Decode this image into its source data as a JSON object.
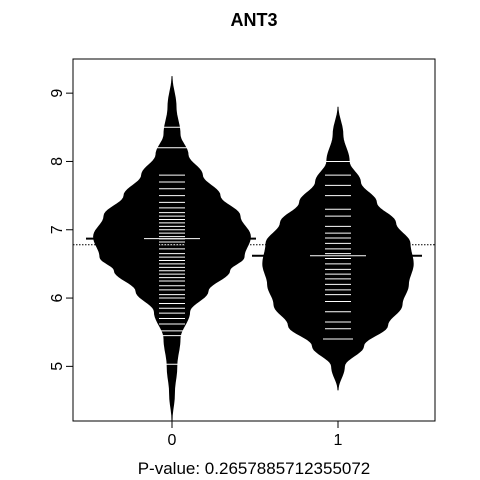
{
  "chart_data": {
    "type": "beanplot",
    "title": "ANT3",
    "xlabel": "P-value: 0.2657885712355072",
    "ylabel": "",
    "ylim": [
      4.2,
      9.5
    ],
    "y_ticks": [
      5,
      6,
      7,
      8,
      9
    ],
    "categories": [
      "0",
      "1"
    ],
    "overall_mean": 6.78,
    "series": [
      {
        "category": "0",
        "mean": 6.87,
        "range": [
          4.2,
          9.25
        ],
        "density": [
          [
            4.2,
            0
          ],
          [
            4.6,
            0.03
          ],
          [
            5.0,
            0.06
          ],
          [
            5.4,
            0.1
          ],
          [
            5.8,
            0.22
          ],
          [
            6.1,
            0.45
          ],
          [
            6.4,
            0.72
          ],
          [
            6.6,
            0.9
          ],
          [
            6.9,
            0.98
          ],
          [
            7.2,
            0.85
          ],
          [
            7.5,
            0.6
          ],
          [
            7.8,
            0.38
          ],
          [
            8.1,
            0.2
          ],
          [
            8.4,
            0.1
          ],
          [
            8.8,
            0.05
          ],
          [
            9.25,
            0
          ]
        ],
        "observations": [
          5.03,
          5.45,
          5.52,
          5.62,
          5.7,
          5.78,
          5.85,
          5.92,
          6.0,
          6.05,
          6.12,
          6.18,
          6.25,
          6.3,
          6.35,
          6.4,
          6.45,
          6.5,
          6.55,
          6.6,
          6.65,
          6.72,
          6.78,
          6.82,
          6.86,
          6.9,
          6.95,
          7.0,
          7.05,
          7.1,
          7.15,
          7.2,
          7.25,
          7.32,
          7.4,
          7.5,
          7.6,
          7.7,
          7.8,
          8.2,
          8.5
        ]
      },
      {
        "category": "1",
        "mean": 6.62,
        "range": [
          4.65,
          8.8
        ],
        "density": [
          [
            4.65,
            0
          ],
          [
            5.0,
            0.08
          ],
          [
            5.3,
            0.32
          ],
          [
            5.6,
            0.62
          ],
          [
            5.9,
            0.8
          ],
          [
            6.2,
            0.88
          ],
          [
            6.5,
            0.94
          ],
          [
            6.8,
            0.9
          ],
          [
            7.1,
            0.72
          ],
          [
            7.4,
            0.48
          ],
          [
            7.7,
            0.28
          ],
          [
            8.0,
            0.14
          ],
          [
            8.4,
            0.06
          ],
          [
            8.8,
            0
          ]
        ],
        "observations": [
          5.4,
          5.55,
          5.65,
          5.8,
          5.95,
          6.05,
          6.12,
          6.2,
          6.28,
          6.35,
          6.42,
          6.5,
          6.58,
          6.65,
          6.72,
          6.8,
          6.88,
          6.95,
          7.05,
          7.2,
          7.3,
          7.5,
          7.65,
          7.8,
          8.0
        ]
      }
    ],
    "grid": false,
    "legend": "none"
  }
}
